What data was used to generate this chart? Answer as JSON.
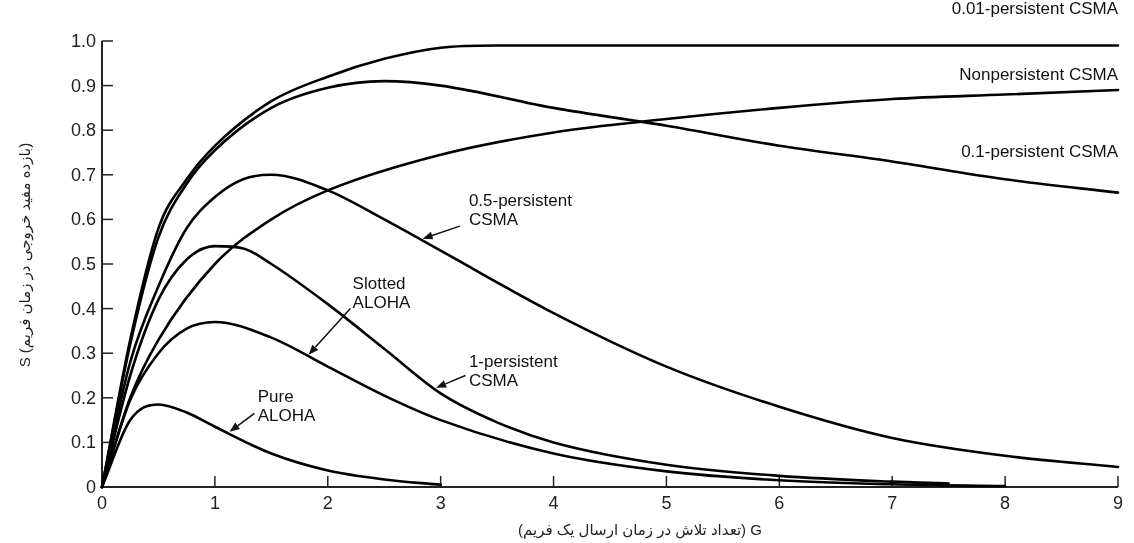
{
  "chart_data": {
    "type": "line",
    "xlabel": "(تعداد تلاش در زمان ارسال یک فریم) G",
    "ylabel": "S (بازده مفید خروجی در زمان فریم)",
    "xlim": [
      0,
      9
    ],
    "ylim": [
      0,
      1
    ],
    "xticks": [
      0,
      1,
      2,
      3,
      4,
      5,
      6,
      7,
      8,
      9
    ],
    "yticks": [
      0,
      0.1,
      0.2,
      0.3,
      0.4,
      0.5,
      0.6,
      0.7,
      0.8,
      0.9,
      {
        "value": 1,
        "label": "1.0"
      }
    ],
    "series": [
      {
        "name": "Pure ALOHA",
        "color": "#000000",
        "x": [
          0,
          0.25,
          0.5,
          0.75,
          1,
          1.5,
          2,
          2.5,
          3
        ],
        "values": [
          0,
          0.15,
          0.185,
          0.167,
          0.135,
          0.075,
          0.037,
          0.017,
          0.005
        ]
      },
      {
        "name": "Slotted ALOHA",
        "color": "#000000",
        "x": [
          0,
          0.25,
          0.5,
          0.75,
          1,
          1.5,
          2,
          2.5,
          3,
          4,
          5,
          6,
          7,
          8
        ],
        "values": [
          0,
          0.195,
          0.3,
          0.355,
          0.37,
          0.335,
          0.27,
          0.205,
          0.15,
          0.075,
          0.035,
          0.015,
          0.006,
          0.002
        ]
      },
      {
        "name": "1-persistent CSMA",
        "color": "#000000",
        "x": [
          0,
          0.25,
          0.5,
          0.75,
          1,
          1.25,
          1.5,
          2,
          2.5,
          3,
          3.5,
          4,
          5,
          6,
          7,
          7.5
        ],
        "values": [
          0,
          0.25,
          0.42,
          0.51,
          0.54,
          0.535,
          0.5,
          0.41,
          0.31,
          0.21,
          0.145,
          0.1,
          0.05,
          0.025,
          0.012,
          0.008
        ]
      },
      {
        "name": "0.5-persistent CSMA",
        "color": "#000000",
        "x": [
          0,
          0.25,
          0.5,
          0.75,
          1,
          1.25,
          1.5,
          2,
          2.5,
          3,
          4,
          5,
          6,
          7,
          8,
          9
        ],
        "values": [
          0,
          0.28,
          0.45,
          0.58,
          0.65,
          0.69,
          0.7,
          0.665,
          0.6,
          0.53,
          0.39,
          0.27,
          0.18,
          0.11,
          0.07,
          0.045
        ]
      },
      {
        "name": "Nonpersistent CSMA",
        "color": "#000000",
        "x": [
          0,
          0.25,
          0.5,
          1,
          1.5,
          2,
          3,
          4,
          5,
          6,
          7,
          8,
          9
        ],
        "values": [
          0,
          0.2,
          0.33,
          0.5,
          0.6,
          0.665,
          0.745,
          0.795,
          0.825,
          0.85,
          0.87,
          0.88,
          0.89
        ]
      },
      {
        "name": "0.1-persistent CSMA",
        "color": "#000000",
        "x": [
          0,
          0.25,
          0.5,
          0.75,
          1,
          1.5,
          2,
          2.5,
          3,
          4,
          5,
          6,
          7,
          8,
          9
        ],
        "values": [
          0,
          0.32,
          0.56,
          0.68,
          0.755,
          0.85,
          0.895,
          0.91,
          0.9,
          0.85,
          0.81,
          0.765,
          0.73,
          0.69,
          0.66
        ]
      },
      {
        "name": "0.01-persistent CSMA",
        "color": "#000000",
        "x": [
          0,
          0.25,
          0.5,
          0.75,
          1,
          1.5,
          2,
          2.5,
          3,
          3.5,
          4,
          5,
          6,
          7,
          8,
          9
        ],
        "values": [
          0,
          0.33,
          0.58,
          0.69,
          0.765,
          0.865,
          0.92,
          0.96,
          0.985,
          0.99,
          0.99,
          0.99,
          0.99,
          0.99,
          0.99,
          0.99
        ]
      }
    ]
  }
}
